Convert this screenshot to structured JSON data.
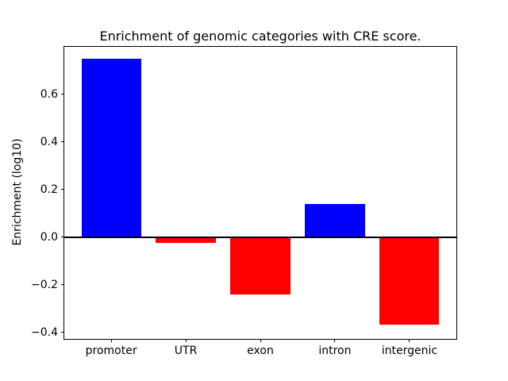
{
  "figure": {
    "background": "#ffffff"
  },
  "chart_data": {
    "type": "bar",
    "title": "Enrichment of genomic categories with CRE score.",
    "xlabel": "",
    "ylabel": "Enrichment (log10)",
    "categories": [
      "promoter",
      "UTR",
      "exon",
      "intron",
      "intergenic"
    ],
    "values": [
      0.748,
      -0.024,
      -0.241,
      0.139,
      -0.368
    ],
    "bar_colors": [
      "#0000ff",
      "#ff0000",
      "#ff0000",
      "#0000ff",
      "#ff0000"
    ],
    "positive_color": "#0000ff",
    "negative_color": "#ff0000",
    "axis_color": "#000000",
    "ylim": [
      -0.428,
      0.804
    ],
    "ytick_values": [
      0.6,
      0.4,
      0.2,
      0.0,
      -0.2,
      -0.4
    ],
    "ytick_labels": [
      "0.6",
      "0.4",
      "0.2",
      "0.0",
      "−0.2",
      "−0.4"
    ],
    "bar_width_fraction": 0.8,
    "zero_line": true,
    "grid": false,
    "legend": null
  }
}
